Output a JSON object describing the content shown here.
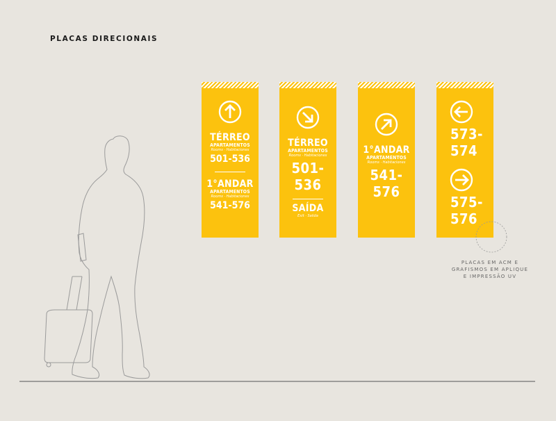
{
  "title": "PLACAS DIRECIONAIS",
  "signs": [
    {
      "arrow": "arrow-up-icon",
      "sections": [
        {
          "name": "TÉRREO",
          "sub": "APARTAMENTOS",
          "ital": "Rooms · Habitaciones",
          "numbers": "501-536"
        },
        {
          "name": "1°ANDAR",
          "sub": "APARTAMENTOS",
          "ital": "Rooms · Habitaciones",
          "numbers": "541-576"
        }
      ]
    },
    {
      "arrow": "arrow-down-right-icon",
      "section": {
        "name": "TÉRREO",
        "sub": "APARTAMENTOS",
        "ital": "Rooms · Habitaciones",
        "numbers": [
          "501-",
          "536"
        ]
      },
      "exit": {
        "name": "SAÍDA",
        "ital": "Exit · Salida"
      }
    },
    {
      "arrow": "arrow-up-right-icon",
      "section": {
        "name": "1°ANDAR",
        "sub": "APARTAMENTOS",
        "ital": "Rooms · Habitaciones",
        "numbers": [
          "541-",
          "576"
        ]
      }
    },
    {
      "arrows": [
        "arrow-left-icon",
        "arrow-right-icon"
      ],
      "blocks": [
        [
          "573-",
          "574"
        ],
        [
          "575-",
          "576"
        ]
      ]
    }
  ],
  "note": [
    "PLACAS EM ACM E",
    "GRAFISMOS EM APLIQUE",
    "E IMPRESSÃO UV"
  ],
  "colors": {
    "background": "#e8e5df",
    "sign": "#fcc20e",
    "text": "#ffffff"
  }
}
